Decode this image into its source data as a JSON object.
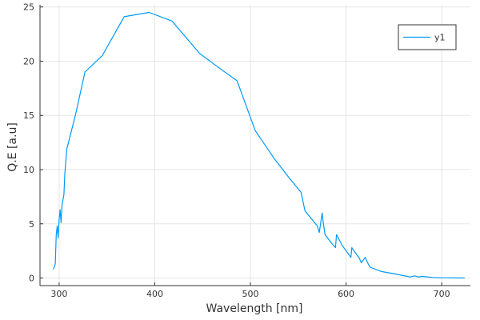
{
  "chart_data": {
    "type": "line",
    "title": "",
    "xlabel": "Wavelength [nm]",
    "ylabel": "Q.E [a.u]",
    "xlim": [
      280,
      730
    ],
    "ylim": [
      -0.7,
      25.2
    ],
    "xticks": [
      300,
      400,
      500,
      600,
      700
    ],
    "yticks": [
      0,
      5,
      10,
      15,
      20,
      25
    ],
    "grid": true,
    "legend_position": "top-right",
    "series": [
      {
        "name": "y1",
        "color": "#009af9",
        "x": [
          294,
          296,
          297,
          298,
          299,
          300,
          301,
          302,
          303,
          304,
          305,
          306,
          308,
          310,
          317,
          327,
          345,
          368,
          394,
          418,
          447,
          470,
          486,
          505,
          525,
          540,
          553,
          557,
          570,
          572,
          575,
          576,
          578,
          585,
          589,
          590,
          596,
          605,
          606,
          614,
          616,
          620,
          622,
          625,
          637,
          650,
          667,
          672,
          675,
          680,
          690,
          700,
          724
        ],
        "y": [
          0.8,
          1.3,
          4.0,
          4.8,
          3.7,
          5.4,
          6.3,
          5.1,
          6.7,
          7.2,
          7.7,
          9.7,
          11.9,
          12.6,
          15.0,
          19.0,
          20.5,
          24.1,
          24.5,
          23.7,
          20.7,
          19.2,
          18.2,
          13.6,
          11.0,
          9.3,
          7.9,
          6.2,
          4.8,
          4.2,
          6.0,
          5.2,
          4.0,
          3.2,
          2.8,
          4.0,
          3.0,
          1.9,
          2.8,
          1.8,
          1.4,
          1.9,
          1.5,
          1.0,
          0.6,
          0.4,
          0.1,
          0.2,
          0.1,
          0.15,
          0.05,
          0.02,
          0.0
        ]
      }
    ]
  }
}
